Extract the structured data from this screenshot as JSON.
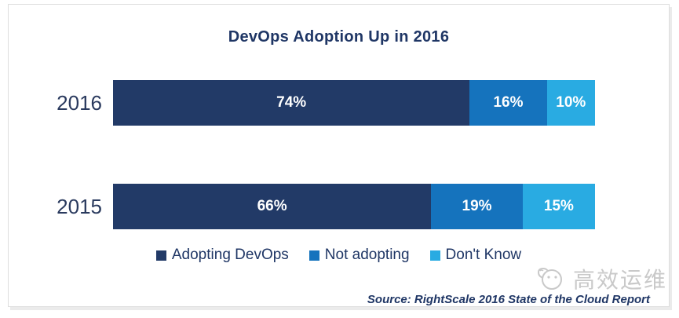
{
  "chart_data": {
    "type": "bar",
    "orientation": "horizontal",
    "stacked": true,
    "title": "DevOps Adoption Up in 2016",
    "categories": [
      "2016",
      "2015"
    ],
    "series": [
      {
        "name": "Adopting DevOps",
        "color": "#223A67",
        "values": [
          74,
          66
        ]
      },
      {
        "name": "Not adopting",
        "color": "#1573BD",
        "values": [
          16,
          19
        ]
      },
      {
        "name": "Don't Know",
        "color": "#29ABE2",
        "values": [
          10,
          15
        ]
      }
    ],
    "value_suffix": "%",
    "xlim": [
      0,
      100
    ],
    "grid": false,
    "legend_position": "bottom"
  },
  "source_note": "Source: RightScale 2016 State of the Cloud Report",
  "watermark": {
    "text": "高效运维"
  },
  "colors": {
    "title_text": "#1F3665",
    "category_text": "#2A3A5E",
    "value_text": "#FFFFFF",
    "watermark": "#C9C9C9",
    "frame_border": "#DEDEDE"
  }
}
